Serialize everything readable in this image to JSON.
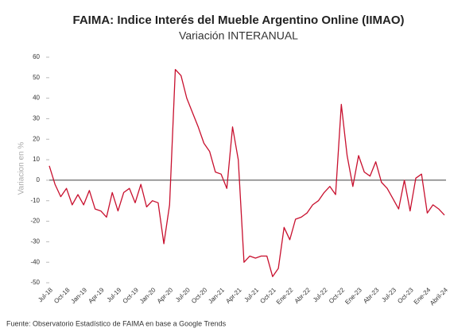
{
  "chart_data": {
    "type": "line",
    "title": "FAIMA: Indice Interés del Mueble Argentino Online (IIMAO)",
    "subtitle": "Variación INTERANUAL",
    "y_label": "Variacion en %",
    "source": "Fuente: Observatorio Estadístico de FAIMA en base a Google Trends",
    "categories": [
      "Jul-18",
      null,
      null,
      "Oct-18",
      null,
      null,
      "Jan-19",
      null,
      null,
      "Apr-19",
      null,
      null,
      "Jul-19",
      null,
      null,
      "Oct-19",
      null,
      null,
      "Jan-20",
      null,
      null,
      "Apr-20",
      null,
      null,
      "Jul-20",
      null,
      null,
      "Oct-20",
      null,
      null,
      "Jan-21",
      null,
      null,
      "Apr-21",
      null,
      null,
      "Jul-21",
      null,
      null,
      "Oct-21",
      null,
      null,
      "Ene-22",
      null,
      null,
      "Abr-22",
      null,
      null,
      "Jul-22",
      null,
      null,
      "Oct-22",
      null,
      null,
      "Ene-23",
      null,
      null,
      "Abr-23",
      null,
      null,
      "Jul-23",
      null,
      null,
      "Oct-23",
      null,
      null,
      "Ene-24",
      null,
      null,
      "Abril-24"
    ],
    "series": [
      {
        "name": "IIMAO",
        "color": "#c8102e",
        "values": [
          7,
          -2,
          -8,
          -4,
          -12,
          -7,
          -12,
          -5,
          -14,
          -15,
          -18,
          -6,
          -15,
          -6,
          -4,
          -11,
          -2,
          -13,
          -10,
          -11,
          -31,
          -12,
          54,
          51,
          40,
          33,
          26,
          18,
          14,
          4,
          3,
          -4,
          26,
          10,
          -40,
          -37,
          -38,
          -37,
          -37,
          -47,
          -43,
          -23,
          -29,
          -19,
          -18,
          -16,
          -12,
          -10,
          -6,
          -3,
          -7,
          37,
          12,
          -3,
          12,
          4,
          2,
          9,
          -1,
          -4,
          -9,
          -14,
          0,
          -15,
          1,
          3,
          -16,
          -12,
          -14,
          -17
        ]
      }
    ],
    "ylim": [
      -50,
      60
    ],
    "yticks": [
      -50,
      -40,
      -30,
      -20,
      -10,
      0,
      10,
      20,
      30,
      40,
      50,
      60
    ],
    "zero_line": true
  }
}
